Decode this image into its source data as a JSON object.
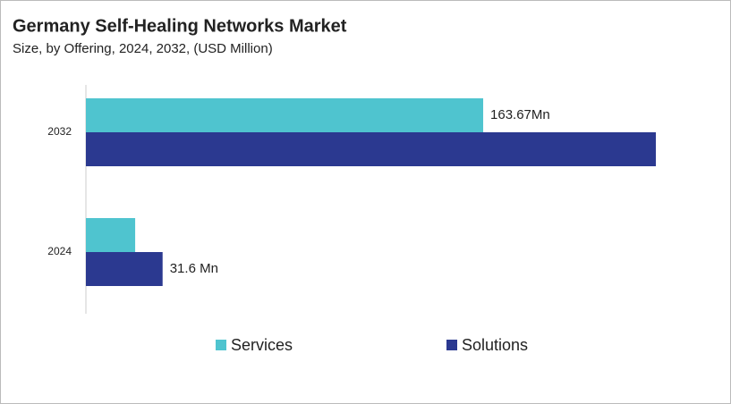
{
  "chart_data": {
    "type": "hbar",
    "title": "Germany Self-Healing Networks Market",
    "subtitle": "Size, by Offering, 2024, 2032, (USD Million)",
    "categories": [
      "2032",
      "2024"
    ],
    "series": [
      {
        "name": "Services",
        "color": "#4fc4cf",
        "values": [
          163.67,
          20.3
        ],
        "value_labels": [
          "163.67Mn",
          null
        ]
      },
      {
        "name": "Solutions",
        "color": "#2b3990",
        "values": [
          234.8,
          31.6
        ],
        "value_labels": [
          null,
          "31.6 Mn"
        ]
      }
    ],
    "legend": "bottom"
  }
}
